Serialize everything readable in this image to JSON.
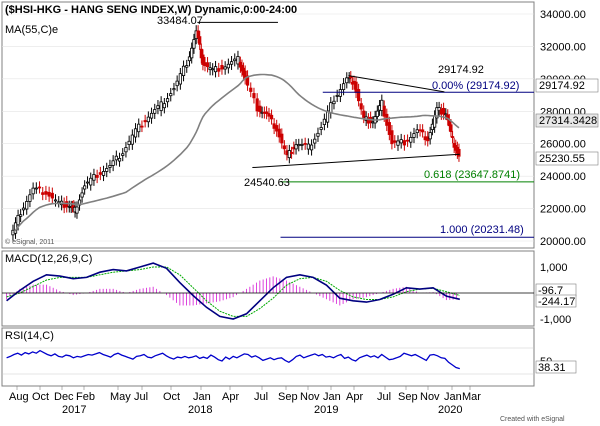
{
  "chart_data": [
    {
      "type": "candlestick",
      "title": "($HSI-HKG - HANG SENG INDEX,W) Dynamic,0:00-24:00",
      "series_label": "MA(55,C)e",
      "watermark": "© eSignal, 2011",
      "y_ticks": [
        "34000.00",
        "32000.00",
        "30000.00",
        "28000.00",
        "26000.00",
        "24000.00",
        "22000.00",
        "20000.00"
      ],
      "ylim": [
        20000,
        34500
      ],
      "price_tags": [
        {
          "text": "29174.92",
          "color": "#ffffff"
        },
        {
          "text": "27314.3428",
          "color": "#ffffff"
        },
        {
          "text": "25230.55",
          "color": "#0000aa"
        }
      ],
      "annotations": [
        {
          "text": "33484.07",
          "x": 2018.07,
          "y": 33484.07
        },
        {
          "text": "29174.92",
          "x": 2019.92,
          "y": 29174.92
        },
        {
          "text": "24540.63",
          "x": 2018.78,
          "y": 24540.63
        }
      ],
      "levels": [
        {
          "label": "0.00% (29174.92)",
          "value": 29174.92,
          "color": "#000080"
        },
        {
          "label": "0.618 (23647.8741)",
          "value": 23647.87,
          "color": "#008000"
        },
        {
          "label": "1.000 (20231.48)",
          "value": 20231.48,
          "color": "#000080"
        }
      ],
      "closes": [
        {
          "x": 2016.62,
          "v": 20200
        },
        {
          "x": 2016.7,
          "v": 21800
        },
        {
          "x": 2016.8,
          "v": 23200
        },
        {
          "x": 2016.9,
          "v": 23000
        },
        {
          "x": 2017.0,
          "v": 22300
        },
        {
          "x": 2017.08,
          "v": 22200
        },
        {
          "x": 2017.12,
          "v": 21900
        },
        {
          "x": 2017.2,
          "v": 23400
        },
        {
          "x": 2017.3,
          "v": 24100
        },
        {
          "x": 2017.4,
          "v": 24600
        },
        {
          "x": 2017.5,
          "v": 25500
        },
        {
          "x": 2017.6,
          "v": 26800
        },
        {
          "x": 2017.7,
          "v": 27700
        },
        {
          "x": 2017.8,
          "v": 28400
        },
        {
          "x": 2017.9,
          "v": 29400
        },
        {
          "x": 2018.0,
          "v": 31000
        },
        {
          "x": 2018.07,
          "v": 32900
        },
        {
          "x": 2018.12,
          "v": 31000
        },
        {
          "x": 2018.2,
          "v": 30500
        },
        {
          "x": 2018.3,
          "v": 30800
        },
        {
          "x": 2018.4,
          "v": 31200
        },
        {
          "x": 2018.45,
          "v": 30000
        },
        {
          "x": 2018.55,
          "v": 28200
        },
        {
          "x": 2018.62,
          "v": 27800
        },
        {
          "x": 2018.7,
          "v": 26900
        },
        {
          "x": 2018.78,
          "v": 25200
        },
        {
          "x": 2018.85,
          "v": 26000
        },
        {
          "x": 2018.95,
          "v": 25800
        },
        {
          "x": 2019.05,
          "v": 27000
        },
        {
          "x": 2019.15,
          "v": 28800
        },
        {
          "x": 2019.25,
          "v": 30000
        },
        {
          "x": 2019.3,
          "v": 29800
        },
        {
          "x": 2019.38,
          "v": 27500
        },
        {
          "x": 2019.45,
          "v": 27400
        },
        {
          "x": 2019.52,
          "v": 28500
        },
        {
          "x": 2019.6,
          "v": 26000
        },
        {
          "x": 2019.7,
          "v": 26100
        },
        {
          "x": 2019.8,
          "v": 26800
        },
        {
          "x": 2019.88,
          "v": 26300
        },
        {
          "x": 2019.95,
          "v": 28100
        },
        {
          "x": 2020.02,
          "v": 27900
        },
        {
          "x": 2020.07,
          "v": 26200
        },
        {
          "x": 2020.12,
          "v": 25230
        }
      ]
    },
    {
      "type": "line",
      "title": "MACD(12,26,9,C)",
      "y_ticks": [
        "1,000",
        "0",
        "-1,000"
      ],
      "ylim": [
        -1200,
        1400
      ],
      "price_tags": [
        {
          "text": "-96.7",
          "color": "#00aa00"
        },
        {
          "text": "-244.17",
          "color": "#0000aa"
        }
      ],
      "series": [
        {
          "name": "MACD",
          "values": [
            -300,
            100,
            450,
            700,
            650,
            550,
            600,
            800,
            900,
            850,
            1000,
            1150,
            950,
            400,
            -100,
            -550,
            -900,
            -1000,
            -800,
            -300,
            200,
            600,
            700,
            600,
            300,
            -200,
            -300,
            -350,
            -250,
            -50,
            200,
            150,
            200,
            -120,
            -244
          ]
        },
        {
          "name": "Signal",
          "values": [
            -150,
            0,
            250,
            500,
            600,
            600,
            600,
            700,
            800,
            850,
            900,
            1000,
            1000,
            700,
            200,
            -300,
            -700,
            -900,
            -900,
            -600,
            -200,
            300,
            550,
            600,
            450,
            100,
            -150,
            -250,
            -250,
            -150,
            50,
            150,
            180,
            50,
            -97
          ]
        }
      ]
    },
    {
      "type": "line",
      "title": "RSI(14,C)",
      "y_ticks": [
        "50"
      ],
      "ylim": [
        20,
        80
      ],
      "price_tags": [
        {
          "text": "38.31",
          "color": "#0000aa"
        }
      ],
      "series": [
        {
          "name": "RSI",
          "values": [
            55,
            57,
            60,
            62,
            59,
            63,
            61,
            64,
            62,
            66,
            63,
            60,
            58,
            61,
            57,
            56,
            59,
            58,
            55,
            57,
            56,
            58,
            60,
            59,
            61,
            63,
            60,
            58,
            56,
            60,
            62,
            59,
            57,
            55,
            53,
            57,
            58,
            60,
            56,
            55,
            58,
            60,
            62,
            58,
            55,
            53,
            56,
            55,
            57,
            55,
            56,
            58,
            54,
            56,
            54,
            59,
            56,
            52,
            50,
            56,
            53,
            57,
            55,
            58,
            61,
            60,
            56,
            58,
            55,
            51,
            53,
            55,
            52,
            54,
            55,
            51,
            48,
            52,
            57,
            59,
            55,
            57,
            59,
            61,
            58,
            60,
            56,
            57,
            55,
            58,
            60,
            54,
            56,
            52,
            50,
            55,
            57,
            59,
            56,
            58,
            55,
            60,
            56,
            52,
            53,
            55,
            57,
            62,
            60,
            58,
            60,
            57,
            54,
            51,
            59,
            60,
            58,
            55,
            54,
            48,
            44,
            40,
            38.31
          ]
        }
      ]
    },
    {
      "type": "axis",
      "x_ticks": [
        "Aug",
        "Oct",
        "Dec",
        "Feb",
        "May",
        "Jul",
        "Oct",
        "Jan",
        "Apr",
        "Jul",
        "Sep",
        "Nov",
        "Jan",
        "Apr",
        "Jul",
        "Sep",
        "Nov",
        "Jan",
        "Mar"
      ],
      "year_labels": [
        "2017",
        "2018",
        "2019",
        "2020"
      ],
      "footer": "Created with eSignal"
    }
  ]
}
